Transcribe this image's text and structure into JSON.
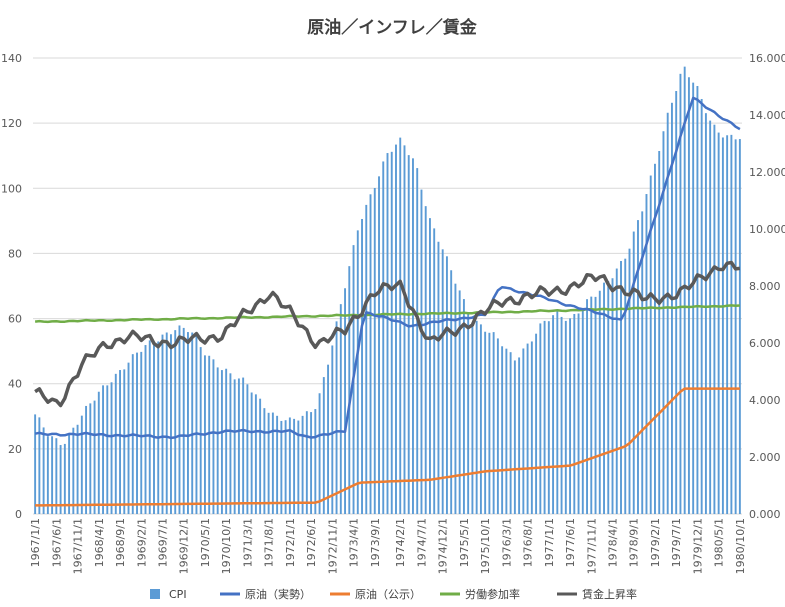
{
  "chart_data": {
    "type": "bar+line",
    "title": "原油／インフレ／賃金",
    "left_axis": {
      "min": 0,
      "max": 140,
      "ticks": [
        "0",
        "20",
        "40",
        "60",
        "80",
        "100",
        "120",
        "140"
      ]
    },
    "right_axis": {
      "min": 0,
      "max": 16,
      "ticks": [
        "0.000",
        "2.000",
        "4.000",
        "6.000",
        "8.000",
        "10.000",
        "12.000",
        "14.000",
        "16.000"
      ]
    },
    "x_labels": [
      "1967/1/1",
      "1967/6/1",
      "1967/11/1",
      "1968/4/1",
      "1968/9/1",
      "1969/2/1",
      "1969/7/1",
      "1969/12/1",
      "1970/5/1",
      "1970/10/1",
      "1971/3/1",
      "1971/8/1",
      "1972/1/1",
      "1972/6/1",
      "1972/11/1",
      "1973/4/1",
      "1973/9/1",
      "1974/2/1",
      "1974/7/1",
      "1974/12/1",
      "1975/5/1",
      "1975/10/1",
      "1976/3/1",
      "1976/8/1",
      "1977/1/1",
      "1977/6/1",
      "1977/11/1",
      "1978/4/1",
      "1978/9/1",
      "1979/2/1",
      "1979/7/1",
      "1979/12/1",
      "1980/5/1",
      "1980/10/1"
    ],
    "legend": [
      {
        "name": "CPI",
        "color": "#5b9bd5",
        "kind": "bar"
      },
      {
        "name": "原油（実勢）",
        "color": "#4472c4",
        "kind": "line"
      },
      {
        "name": "原油（公示）",
        "color": "#ed7d31",
        "kind": "line"
      },
      {
        "name": "労働参加率",
        "color": "#70ad47",
        "kind": "line"
      },
      {
        "name": "賃金上昇率",
        "color": "#595959",
        "kind": "line"
      }
    ],
    "cpi_anchors": [
      [
        0,
        30
      ],
      [
        3,
        24
      ],
      [
        6,
        22
      ],
      [
        9,
        28
      ],
      [
        12,
        34
      ],
      [
        15,
        40
      ],
      [
        18,
        44
      ],
      [
        21,
        48
      ],
      [
        24,
        52
      ],
      [
        27,
        55
      ],
      [
        30,
        57
      ],
      [
        33,
        56
      ],
      [
        36,
        50
      ],
      [
        39,
        46
      ],
      [
        42,
        42
      ],
      [
        45,
        40
      ],
      [
        48,
        35
      ],
      [
        51,
        30
      ],
      [
        54,
        28
      ],
      [
        57,
        30
      ],
      [
        60,
        34
      ],
      [
        63,
        50
      ],
      [
        66,
        70
      ],
      [
        69,
        90
      ],
      [
        72,
        100
      ],
      [
        75,
        110
      ],
      [
        78,
        115
      ],
      [
        81,
        108
      ],
      [
        84,
        90
      ],
      [
        87,
        80
      ],
      [
        90,
        70
      ],
      [
        93,
        60
      ],
      [
        96,
        56
      ],
      [
        99,
        53
      ],
      [
        102,
        48
      ],
      [
        105,
        52
      ],
      [
        108,
        58
      ],
      [
        111,
        62
      ],
      [
        114,
        60
      ],
      [
        117,
        64
      ],
      [
        120,
        68
      ],
      [
        123,
        74
      ],
      [
        126,
        80
      ],
      [
        129,
        92
      ],
      [
        132,
        108
      ],
      [
        135,
        125
      ],
      [
        138,
        137
      ],
      [
        141,
        130
      ],
      [
        144,
        120
      ],
      [
        147,
        116
      ],
      [
        150,
        115
      ]
    ],
    "crude_actual_anchors": [
      [
        0,
        2.8
      ],
      [
        10,
        2.8
      ],
      [
        30,
        2.7
      ],
      [
        40,
        2.9
      ],
      [
        54,
        2.9
      ],
      [
        58,
        2.7
      ],
      [
        66,
        2.9
      ],
      [
        70,
        7.1
      ],
      [
        80,
        6.6
      ],
      [
        96,
        7.0
      ],
      [
        99,
        8.0
      ],
      [
        110,
        7.5
      ],
      [
        125,
        6.8
      ],
      [
        140,
        14.6
      ],
      [
        150,
        13.5
      ]
    ],
    "crude_posted_anchors": [
      [
        0,
        0.3
      ],
      [
        60,
        0.4
      ],
      [
        69,
        1.1
      ],
      [
        84,
        1.2
      ],
      [
        96,
        1.5
      ],
      [
        114,
        1.7
      ],
      [
        126,
        2.4
      ],
      [
        138,
        4.4
      ],
      [
        150,
        4.4
      ]
    ],
    "lfp_anchors": [
      [
        0,
        59
      ],
      [
        50,
        60.5
      ],
      [
        100,
        62
      ],
      [
        150,
        64
      ]
    ],
    "wage_anchors": [
      [
        0,
        4.2
      ],
      [
        5,
        3.9
      ],
      [
        10,
        5.2
      ],
      [
        15,
        6.0
      ],
      [
        20,
        6.2
      ],
      [
        30,
        6.0
      ],
      [
        40,
        6.3
      ],
      [
        50,
        7.8
      ],
      [
        60,
        6.0
      ],
      [
        66,
        6.4
      ],
      [
        72,
        7.8
      ],
      [
        78,
        8.0
      ],
      [
        84,
        6.0
      ],
      [
        90,
        6.5
      ],
      [
        100,
        7.5
      ],
      [
        110,
        7.8
      ],
      [
        120,
        8.3
      ],
      [
        130,
        7.5
      ],
      [
        138,
        7.8
      ],
      [
        146,
        8.8
      ],
      [
        150,
        8.6
      ]
    ],
    "n_points": 167
  }
}
